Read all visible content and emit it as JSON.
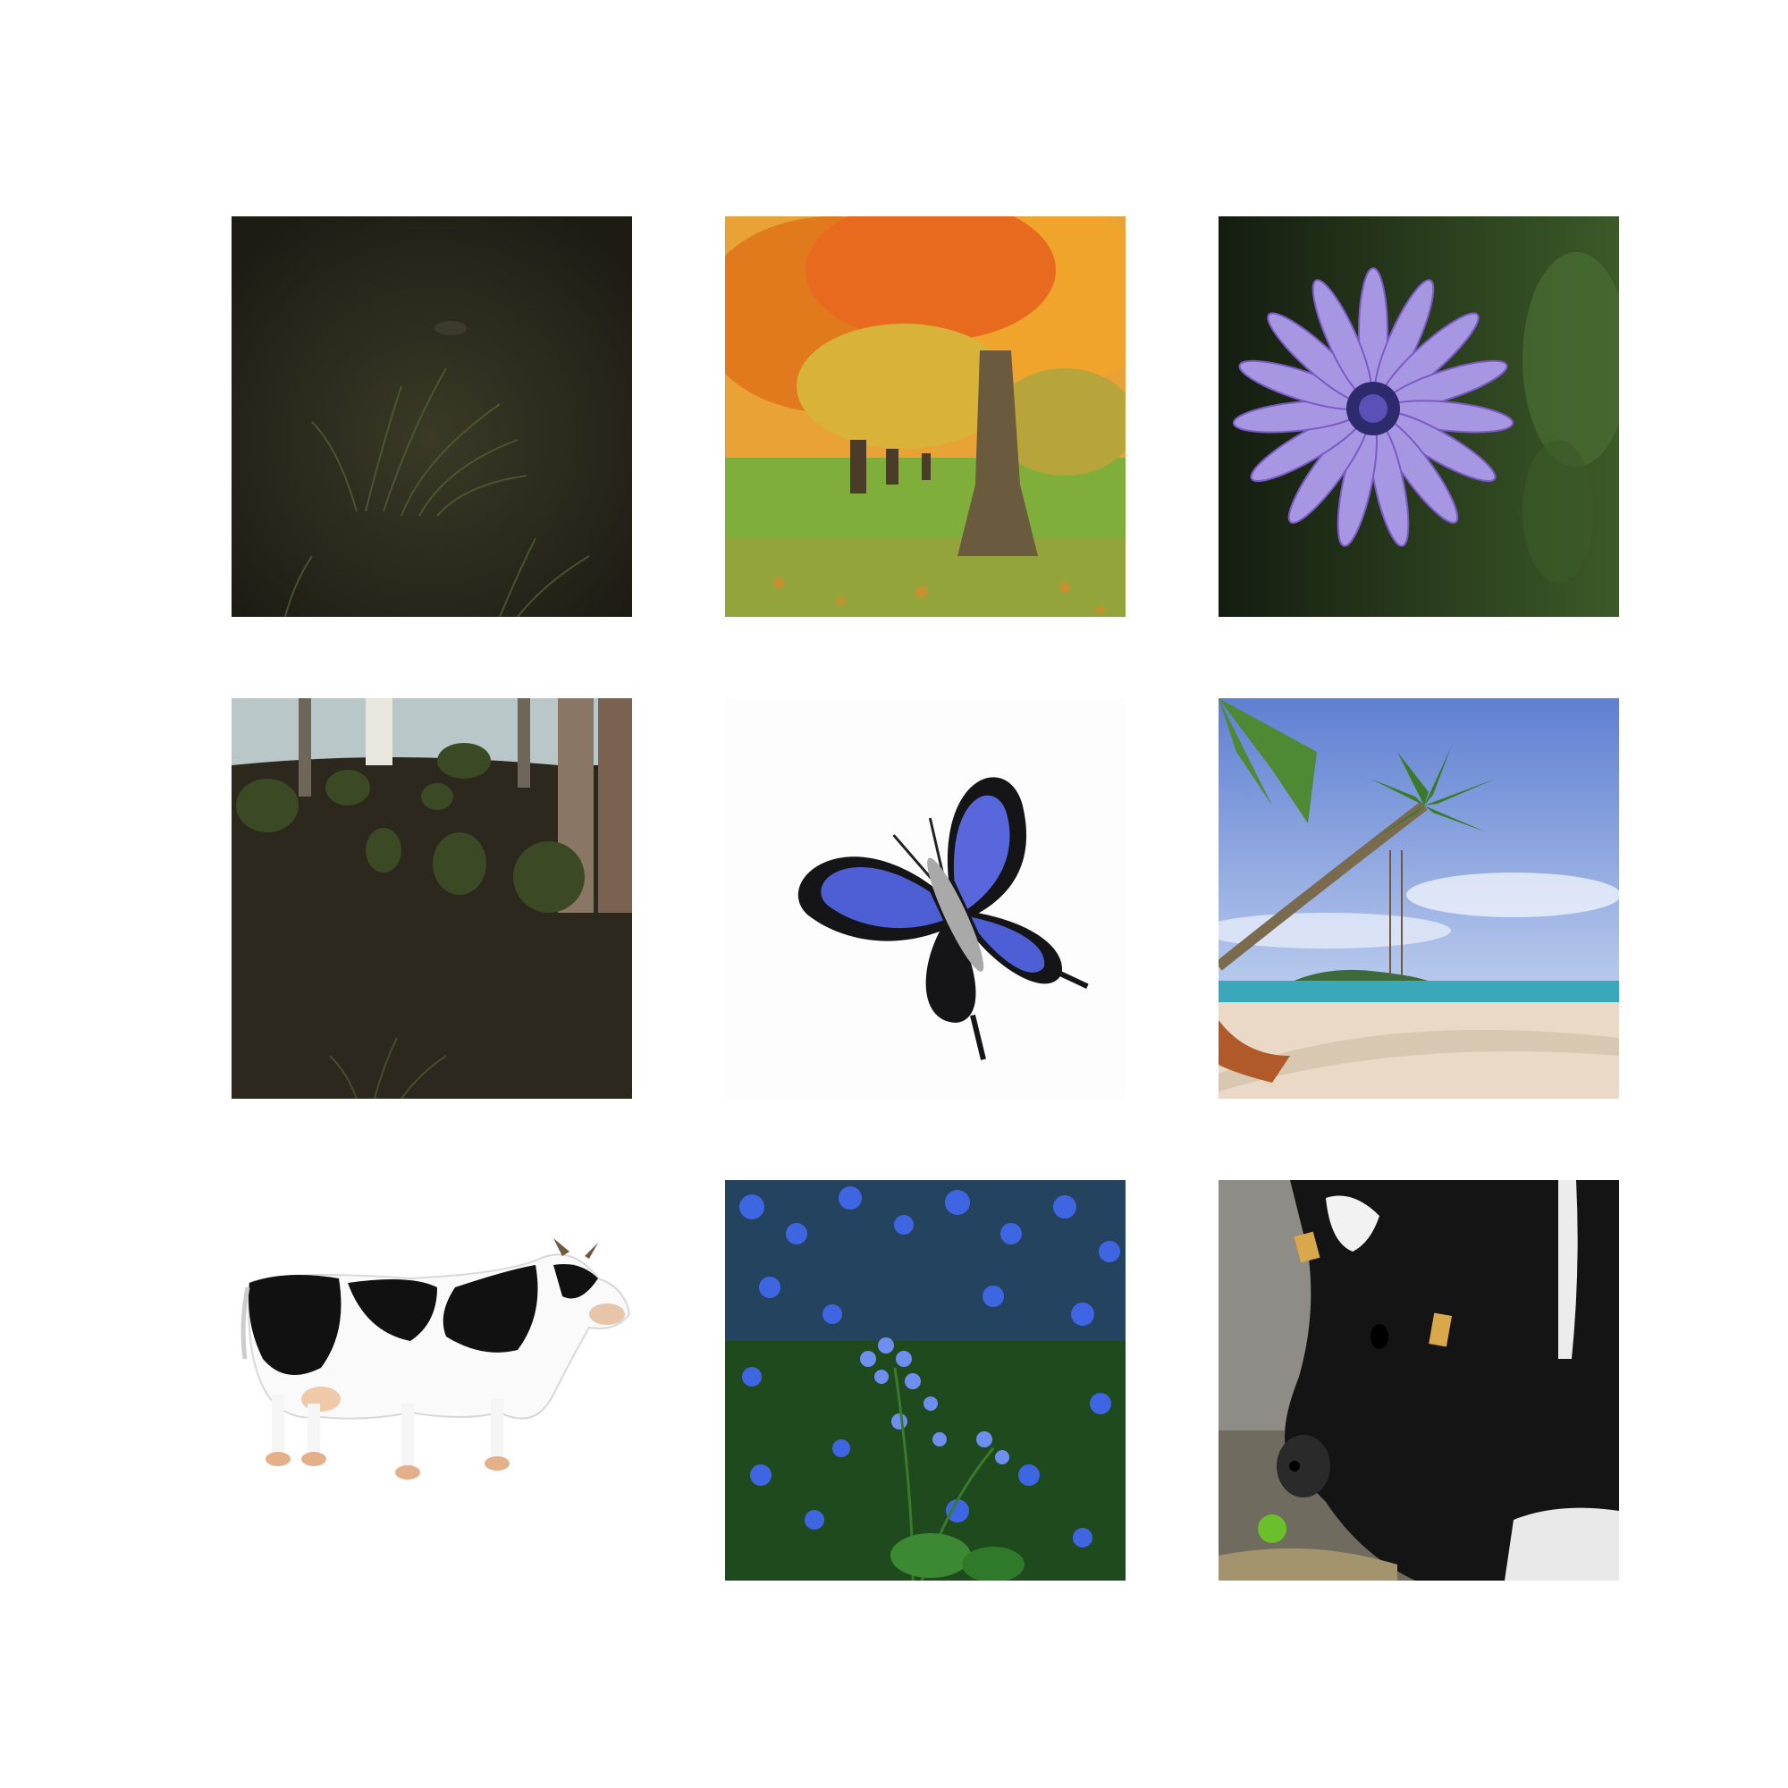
{
  "images": [
    {
      "subject": "forest-floor-grass",
      "palette": [
        "#1f1f16",
        "#2c2d1f",
        "#3b4a2a"
      ]
    },
    {
      "subject": "autumn-tree-park",
      "palette": [
        "#e07a1c",
        "#f2b03a",
        "#7fae3a"
      ]
    },
    {
      "subject": "purple-daisy",
      "palette": [
        "#1c2a14",
        "#9a86d8",
        "#5a3fb0"
      ]
    },
    {
      "subject": "dark-forest-hillside",
      "palette": [
        "#221f18",
        "#3a3424",
        "#b9c7c9"
      ]
    },
    {
      "subject": "blue-butterfly",
      "palette": [
        "#ffffff",
        "#4e5fd6",
        "#151518"
      ]
    },
    {
      "subject": "tropical-beach-palm",
      "palette": [
        "#6f8fd6",
        "#e9d9c6",
        "#3d7a3a"
      ]
    },
    {
      "subject": "holstein-cow-figurine",
      "palette": [
        "#ffffff",
        "#111111",
        "#e8c4a8"
      ]
    },
    {
      "subject": "forget-me-not-flowers",
      "palette": [
        "#1f4a1e",
        "#3f66e2",
        "#6e8ff0"
      ]
    },
    {
      "subject": "black-white-calf",
      "palette": [
        "#8d8c86",
        "#141414",
        "#d9a84a"
      ]
    }
  ]
}
